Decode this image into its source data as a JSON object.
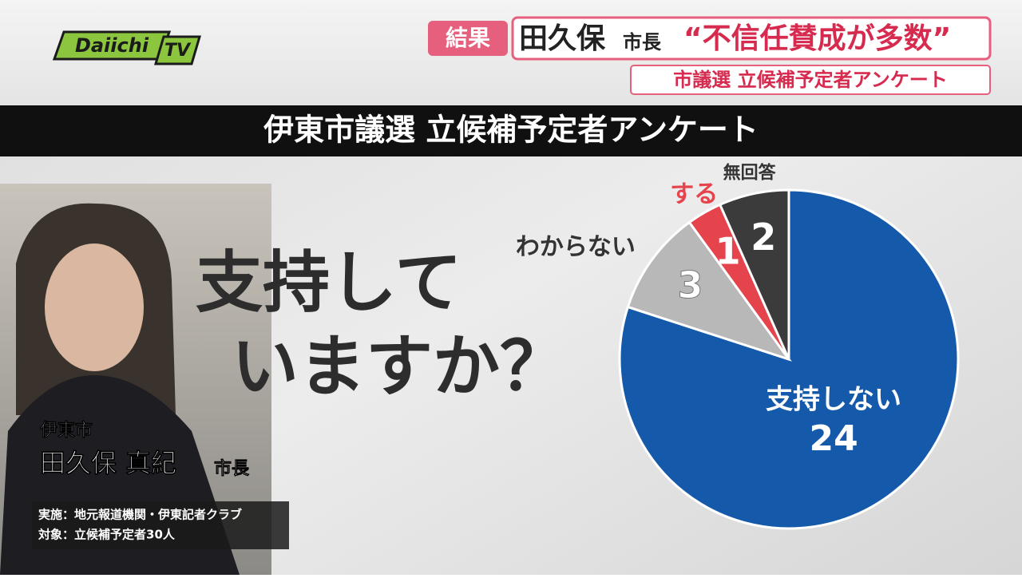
{
  "screen": {
    "logo": {
      "main": "Daiichi",
      "tv": "TV"
    },
    "headline": {
      "tag": "結果",
      "name": "田久保",
      "role": "市長",
      "quote": "“不信任賛成が多数”",
      "sub": "市議選 立候補予定者アンケート"
    },
    "caption": {
      "city": "伊東市",
      "name": "田久保 真紀",
      "role": "市長"
    },
    "notes": [
      "実施：地元報道機関・伊東記者クラブ",
      "対象：立候補予定者30人"
    ]
  },
  "chart_data": {
    "type": "pie",
    "title": "伊東市議選 立候補予定者アンケート",
    "subtitle": [
      "支持して",
      "いますか？"
    ],
    "categories": [
      "支持しない",
      "わからない",
      "する",
      "無回答"
    ],
    "values": [
      24,
      3,
      1,
      2
    ],
    "colors": [
      "#1559ab",
      "#b8b8b8",
      "#e6444c",
      "#3b3b3b"
    ],
    "start": "top",
    "direction": "clockwise"
  }
}
